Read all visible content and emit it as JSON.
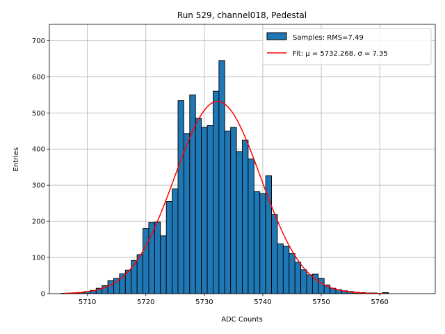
{
  "chart_data": {
    "type": "bar",
    "title": "Run 529, channel018, Pedestal",
    "xlabel": "ADC Counts",
    "ylabel": "Entries",
    "xlim": [
      5703.5,
      5769.5
    ],
    "ylim": [
      0,
      745
    ],
    "xticks": [
      5710,
      5720,
      5730,
      5740,
      5750,
      5760
    ],
    "yticks": [
      0,
      100,
      200,
      300,
      400,
      500,
      600,
      700
    ],
    "grid": true,
    "legend_location": "top-right",
    "histogram": {
      "name": "Samples: RMS=7.49",
      "color": "#1f77b4",
      "bin_width": 1,
      "bin_centers": [
        5706,
        5707,
        5708,
        5709,
        5710,
        5711,
        5712,
        5713,
        5714,
        5715,
        5716,
        5717,
        5718,
        5719,
        5720,
        5721,
        5722,
        5723,
        5724,
        5725,
        5726,
        5727,
        5728,
        5729,
        5730,
        5731,
        5732,
        5733,
        5734,
        5735,
        5736,
        5737,
        5738,
        5739,
        5740,
        5741,
        5742,
        5743,
        5744,
        5745,
        5746,
        5747,
        5748,
        5749,
        5750,
        5751,
        5752,
        5753,
        5754,
        5755,
        5756,
        5757,
        5758,
        5759,
        5760,
        5761
      ],
      "counts": [
        1,
        1,
        2,
        3,
        6,
        9,
        15,
        22,
        36,
        42,
        55,
        65,
        92,
        108,
        180,
        197,
        198,
        160,
        255,
        290,
        534,
        443,
        550,
        485,
        460,
        465,
        560,
        645,
        450,
        460,
        393,
        425,
        373,
        282,
        277,
        326,
        219,
        138,
        131,
        111,
        87,
        66,
        52,
        54,
        42,
        24,
        15,
        11,
        8,
        6,
        4,
        3,
        2,
        2,
        1,
        3
      ]
    },
    "fit": {
      "name": "Fit: μ = 5732.268, σ = 7.35",
      "color": "#ff0000",
      "mu": 5732.268,
      "sigma": 7.35,
      "amplitude": 532,
      "x_range": [
        5706,
        5761
      ]
    }
  }
}
